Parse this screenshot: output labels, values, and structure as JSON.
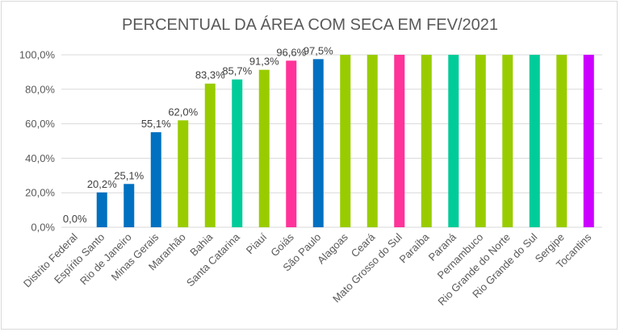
{
  "chart_data": {
    "type": "bar",
    "title": "PERCENTUAL DA ÁREA COM SECA EM FEV/2021",
    "xlabel": "",
    "ylabel": "",
    "ylim": [
      0,
      100
    ],
    "yticks": [
      "0,0%",
      "20,0%",
      "40,0%",
      "60,0%",
      "80,0%",
      "100,0%"
    ],
    "ytick_values": [
      0,
      20,
      40,
      60,
      80,
      100
    ],
    "grid": true,
    "categories": [
      "Distrito Federal",
      "Espírito Santo",
      "Rio de Janeiro",
      "Minas Gerais",
      "Maranhão",
      "Bahia",
      "Santa Catarina",
      "Piauí",
      "Goiás",
      "São Paulo",
      "Alagoas",
      "Ceará",
      "Mato Grosso do Sul",
      "Paraíba",
      "Paraná",
      "Pernambuco",
      "Rio Grande do Norte",
      "Rio Grande do Sul",
      "Sergipe",
      "Tocantins"
    ],
    "values": [
      0.0,
      20.2,
      25.1,
      55.1,
      62.0,
      83.3,
      85.7,
      91.3,
      96.6,
      97.5,
      100,
      100,
      100,
      100,
      100,
      100,
      100,
      100,
      100,
      100
    ],
    "data_labels": [
      "0,0%",
      "20,2%",
      "25,1%",
      "55,1%",
      "62,0%",
      "83,3%",
      "85,7%",
      "91,3%",
      "96,6%",
      "97,5%",
      null,
      null,
      null,
      null,
      null,
      null,
      null,
      null,
      null,
      null
    ],
    "colors": [
      "#0070C0",
      "#0070C0",
      "#0070C0",
      "#0070C0",
      "#99CC00",
      "#99CC00",
      "#00CC99",
      "#99CC00",
      "#FF3399",
      "#0070C0",
      "#99CC00",
      "#99CC00",
      "#FF3399",
      "#99CC00",
      "#00CC99",
      "#99CC00",
      "#99CC00",
      "#00CC99",
      "#99CC00",
      "#CC00FF"
    ]
  }
}
